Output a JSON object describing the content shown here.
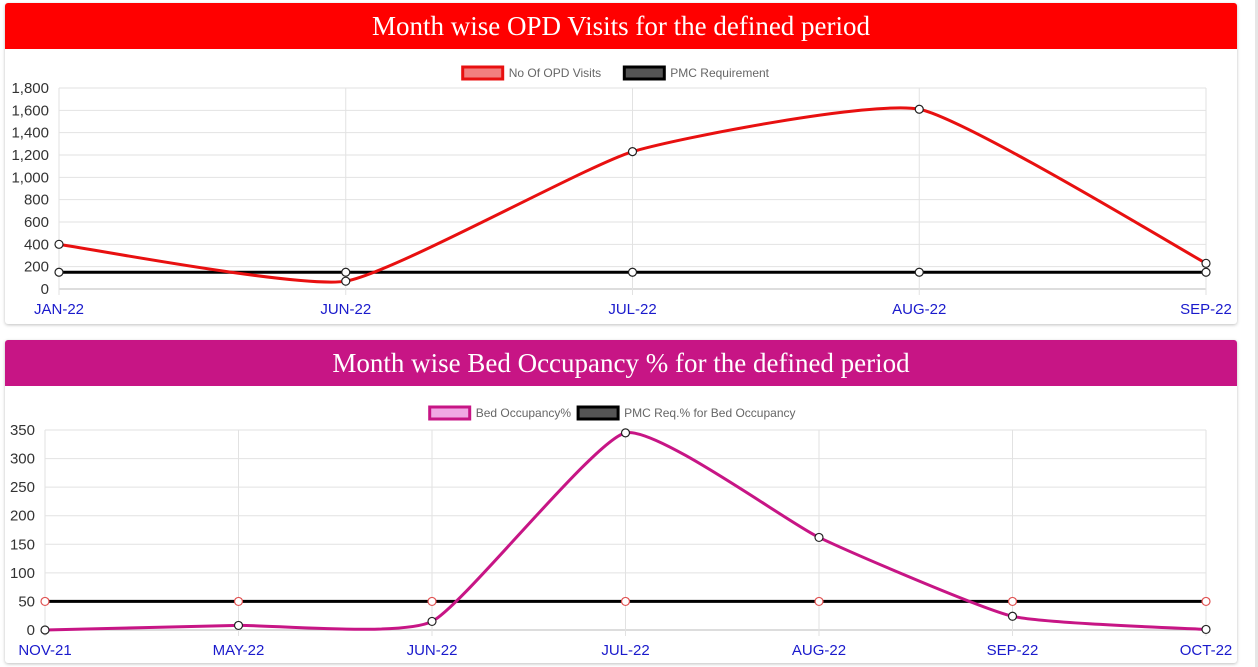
{
  "chart_data": [
    {
      "type": "line",
      "title": "Month wise OPD Visits for the defined period",
      "header_color": "#ff0000",
      "categories": [
        "JAN-22",
        "JUN-22",
        "JUL-22",
        "AUG-22",
        "SEP-22"
      ],
      "y_ticks": [
        "0",
        "200",
        "400",
        "600",
        "800",
        "1,000",
        "1,200",
        "1,400",
        "1,600",
        "1,800"
      ],
      "ylim": [
        0,
        1800
      ],
      "grid": true,
      "legend_position": "top-center",
      "series": [
        {
          "name": "No Of OPD Visits",
          "values": [
            400,
            70,
            1230,
            1610,
            230
          ],
          "color": "#e81010",
          "fill": "#f27f7f",
          "smooth": true,
          "point_stroke": "#222222"
        },
        {
          "name": "PMC Requirement",
          "values": [
            150,
            150,
            150,
            150,
            150
          ],
          "color": "#000000",
          "fill": "#555555",
          "smooth": false,
          "point_stroke": "#222222"
        }
      ]
    },
    {
      "type": "line",
      "title": "Month wise Bed Occupancy % for the defined period",
      "header_color": "#c71585",
      "categories": [
        "NOV-21",
        "MAY-22",
        "JUN-22",
        "JUL-22",
        "AUG-22",
        "SEP-22",
        "OCT-22"
      ],
      "y_ticks": [
        "0",
        "50",
        "100",
        "150",
        "200",
        "250",
        "300",
        "350"
      ],
      "ylim": [
        0,
        350
      ],
      "grid": true,
      "legend_position": "top-center",
      "series": [
        {
          "name": "Bed Occupancy%",
          "values": [
            0,
            8,
            15,
            345,
            162,
            24,
            1
          ],
          "color": "#c71585",
          "fill": "#f0a8e4",
          "smooth": true,
          "point_stroke": "#222222"
        },
        {
          "name": "PMC Req.% for Bed Occupancy",
          "values": [
            50,
            50,
            50,
            50,
            50,
            50,
            50
          ],
          "color": "#000000",
          "fill": "#555555",
          "smooth": false,
          "point_stroke": "#e05050"
        }
      ]
    }
  ]
}
